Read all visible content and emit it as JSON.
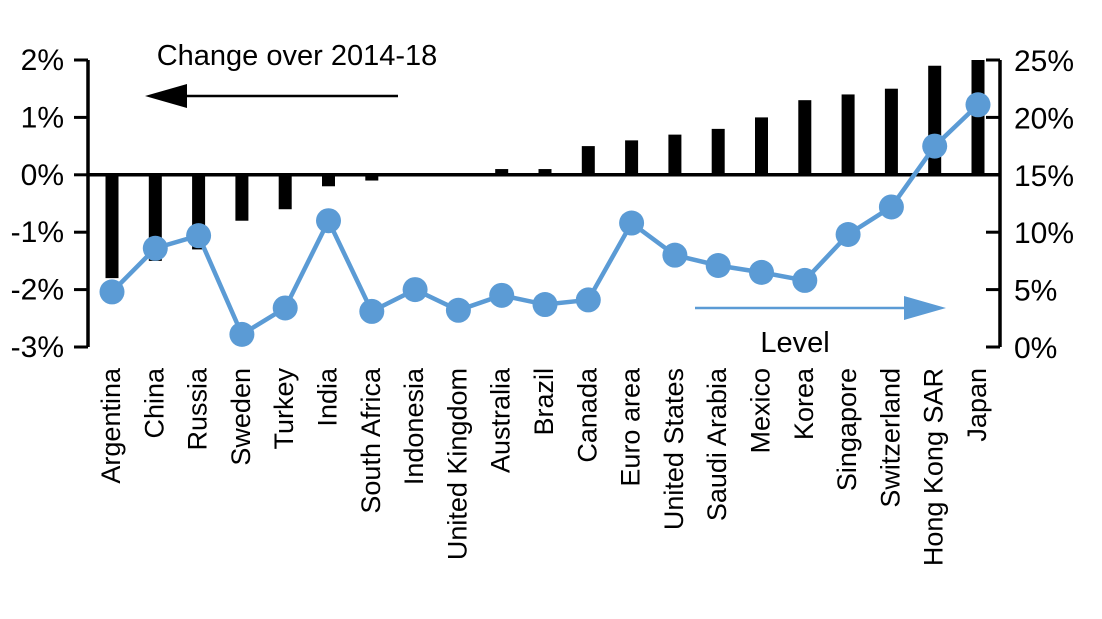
{
  "chart_data": {
    "type": "bar",
    "subtype": "dual-axis bar + line (dot marker) combo chart",
    "title": "",
    "categories": [
      "Argentina",
      "China",
      "Russia",
      "Sweden",
      "Turkey",
      "India",
      "South Africa",
      "Indonesia",
      "United Kingdom",
      "Australia",
      "Brazil",
      "Canada",
      "Euro area",
      "United States",
      "Saudi Arabia",
      "Mexico",
      "Korea",
      "Singapore",
      "Switzerland",
      "Hong Kong SAR",
      "Japan"
    ],
    "series": [
      {
        "name": "Change over 2014-18",
        "type": "bar",
        "axis": "left",
        "color": "#000000",
        "values": [
          -1.8,
          -1.5,
          -1.3,
          -0.8,
          -0.6,
          -0.2,
          -0.1,
          0.0,
          0.0,
          0.1,
          0.1,
          0.5,
          0.6,
          0.7,
          0.8,
          1.0,
          1.3,
          1.4,
          1.5,
          1.9,
          2.0
        ]
      },
      {
        "name": "Level",
        "type": "line",
        "axis": "right",
        "color": "#5B9BD5",
        "values": [
          4.8,
          8.6,
          9.7,
          1.1,
          3.4,
          11.0,
          3.1,
          5.0,
          3.2,
          4.5,
          3.7,
          4.1,
          10.8,
          8.0,
          7.1,
          6.5,
          5.8,
          9.8,
          12.2,
          17.5,
          21.1
        ]
      }
    ],
    "left_axis": {
      "min": -3,
      "max": 2,
      "tick_values": [
        2,
        1,
        0,
        -1,
        -2,
        -3
      ],
      "tick_labels": [
        "2%",
        "1%",
        "0%",
        "-1%",
        "-2%",
        "-3%"
      ]
    },
    "right_axis": {
      "min": 0,
      "max": 25,
      "tick_values": [
        25,
        20,
        15,
        10,
        5,
        0
      ],
      "tick_labels": [
        "25%",
        "20%",
        "15%",
        "10%",
        "5%",
        "0%"
      ]
    },
    "annotations": [
      {
        "text": "Change over 2014-18",
        "arrow": "left",
        "color": "#000000"
      },
      {
        "text": "Level",
        "arrow": "right",
        "color": "#5B9BD5"
      }
    ],
    "grid": false,
    "legend_position": "in-plot annotations with arrows"
  }
}
